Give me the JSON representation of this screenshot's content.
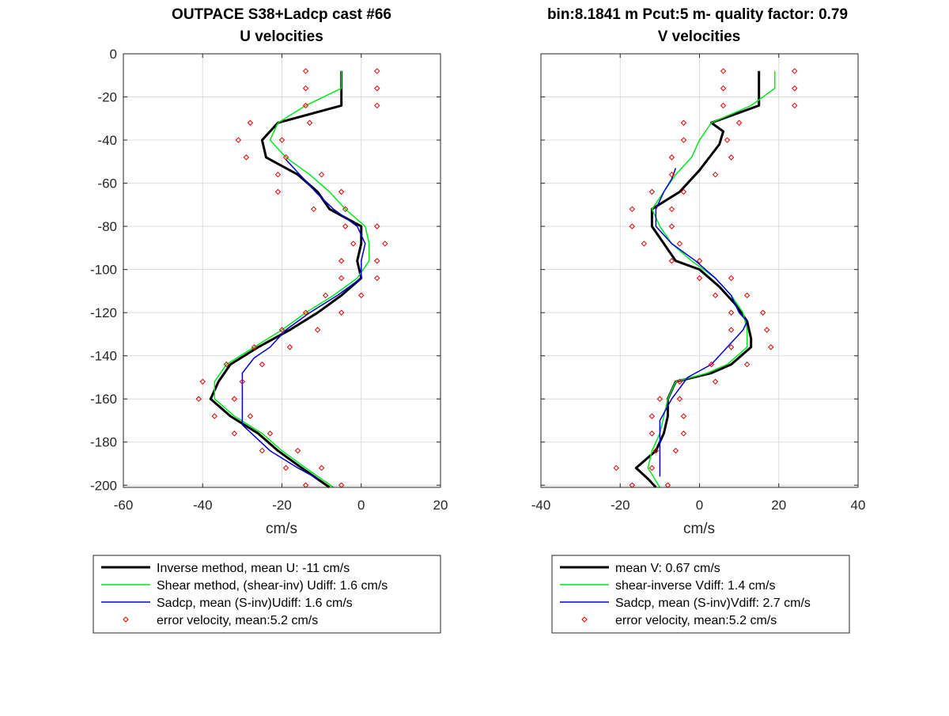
{
  "chart_data": [
    {
      "type": "line",
      "title": "OUTPACE S38+Ladcp cast #66",
      "subtitle": "U velocities",
      "xlabel": "cm/s",
      "ylabel": "",
      "xlim": [
        -60,
        20
      ],
      "ylim": [
        -201,
        0
      ],
      "xticks": [
        -60,
        -40,
        -20,
        0,
        20
      ],
      "yticks": [
        0,
        -20,
        -40,
        -60,
        -80,
        -100,
        -120,
        -140,
        -160,
        -180,
        -200
      ],
      "grid": true,
      "legend_position": "below",
      "series": [
        {
          "name": "Inverse method, mean U:  -11 cm/s",
          "color": "#000000",
          "style": "line-thick",
          "points": [
            [
              -5,
              -8
            ],
            [
              -5,
              -24
            ],
            [
              -21,
              -32
            ],
            [
              -25,
              -40
            ],
            [
              -24,
              -48
            ],
            [
              -20,
              -52
            ],
            [
              -16,
              -56
            ],
            [
              -11,
              -64
            ],
            [
              -8,
              -72
            ],
            [
              -4,
              -76
            ],
            [
              0,
              -80
            ],
            [
              0,
              -88
            ],
            [
              -1,
              -96
            ],
            [
              0,
              -104
            ],
            [
              -5,
              -112
            ],
            [
              -11,
              -120
            ],
            [
              -18,
              -128
            ],
            [
              -26,
              -136
            ],
            [
              -33,
              -144
            ],
            [
              -36,
              -152
            ],
            [
              -38,
              -160
            ],
            [
              -33,
              -168
            ],
            [
              -26,
              -176
            ],
            [
              -21,
              -184
            ],
            [
              -15,
              -192
            ],
            [
              -8,
              -201
            ]
          ]
        },
        {
          "name": "Shear method, (shear-inv)  Udiff:  1.6 cm/s",
          "color": "#00e61e",
          "style": "line",
          "points": [
            [
              -5,
              -8
            ],
            [
              -5,
              -16
            ],
            [
              -14,
              -24
            ],
            [
              -21,
              -32
            ],
            [
              -23,
              -40
            ],
            [
              -19,
              -48
            ],
            [
              -13,
              -56
            ],
            [
              -8,
              -64
            ],
            [
              -4,
              -72
            ],
            [
              1,
              -80
            ],
            [
              2,
              -88
            ],
            [
              2,
              -96
            ],
            [
              -1,
              -104
            ],
            [
              -7,
              -112
            ],
            [
              -14,
              -120
            ],
            [
              -20,
              -128
            ],
            [
              -27,
              -136
            ],
            [
              -34,
              -144
            ],
            [
              -37,
              -152
            ],
            [
              -37,
              -160
            ],
            [
              -32,
              -168
            ],
            [
              -25,
              -176
            ],
            [
              -20,
              -184
            ],
            [
              -14,
              -192
            ],
            [
              -7,
              -201
            ]
          ]
        },
        {
          "name": "Sadcp, mean (S-inv)Udiff: 1.6 cm/s",
          "color": "#0000d6",
          "style": "line",
          "points": [
            [
              -19,
              -49
            ],
            [
              -15,
              -57
            ],
            [
              -11,
              -65
            ],
            [
              -7,
              -72
            ],
            [
              -1,
              -80
            ],
            [
              1,
              -88
            ],
            [
              0,
              -96
            ],
            [
              0,
              -104
            ],
            [
              -6,
              -112
            ],
            [
              -13,
              -120
            ],
            [
              -19,
              -128
            ],
            [
              -23,
              -136
            ],
            [
              -27,
              -141
            ],
            [
              -30,
              -148
            ],
            [
              -30,
              -160
            ],
            [
              -30,
              -172
            ],
            [
              -23,
              -184
            ],
            [
              -16,
              -192
            ],
            [
              -11,
              -197
            ]
          ]
        },
        {
          "name": "error velocity, mean:5.2 cm/s",
          "color": "#e60000",
          "style": "markers",
          "points": [
            [
              -14,
              -8
            ],
            [
              4,
              -8
            ],
            [
              -14,
              -16
            ],
            [
              4,
              -16
            ],
            [
              -14,
              -24
            ],
            [
              4,
              -24
            ],
            [
              -28,
              -32
            ],
            [
              -13,
              -32
            ],
            [
              -31,
              -40
            ],
            [
              -20,
              -40
            ],
            [
              -29,
              -48
            ],
            [
              -19,
              -48
            ],
            [
              -21,
              -56
            ],
            [
              -10,
              -56
            ],
            [
              -21,
              -64
            ],
            [
              -5,
              -64
            ],
            [
              -12,
              -72
            ],
            [
              -4,
              -72
            ],
            [
              -4,
              -80
            ],
            [
              4,
              -80
            ],
            [
              -2,
              -88
            ],
            [
              6,
              -88
            ],
            [
              -5,
              -96
            ],
            [
              4,
              -96
            ],
            [
              -5,
              -104
            ],
            [
              4,
              -104
            ],
            [
              -9,
              -112
            ],
            [
              0,
              -112
            ],
            [
              -14,
              -120
            ],
            [
              -5,
              -120
            ],
            [
              -20,
              -128
            ],
            [
              -11,
              -128
            ],
            [
              -27,
              -136
            ],
            [
              -18,
              -136
            ],
            [
              -34,
              -144
            ],
            [
              -25,
              -144
            ],
            [
              -40,
              -152
            ],
            [
              -30,
              -152
            ],
            [
              -41,
              -160
            ],
            [
              -32,
              -160
            ],
            [
              -37,
              -168
            ],
            [
              -28,
              -168
            ],
            [
              -32,
              -176
            ],
            [
              -23,
              -176
            ],
            [
              -25,
              -184
            ],
            [
              -16,
              -184
            ],
            [
              -19,
              -192
            ],
            [
              -10,
              -192
            ],
            [
              -14,
              -200
            ],
            [
              -5,
              -200
            ]
          ]
        }
      ]
    },
    {
      "type": "line",
      "title": "bin:8.1841 m  Pcut:5 m- quality factor:  0.79",
      "subtitle": "V velocities",
      "xlabel": "cm/s",
      "ylabel": "",
      "xlim": [
        -40,
        40
      ],
      "ylim": [
        -201,
        0
      ],
      "xticks": [
        -40,
        -20,
        0,
        20,
        40
      ],
      "yticks": [],
      "grid": true,
      "legend_position": "below",
      "series": [
        {
          "name": "mean V:  0.67 cm/s",
          "color": "#000000",
          "style": "line-thick",
          "points": [
            [
              15,
              -8
            ],
            [
              15,
              -24
            ],
            [
              3,
              -32
            ],
            [
              6,
              -36
            ],
            [
              5,
              -42
            ],
            [
              0,
              -54
            ],
            [
              -5,
              -64
            ],
            [
              -12,
              -72
            ],
            [
              -12,
              -80
            ],
            [
              -9,
              -88
            ],
            [
              -6,
              -96
            ],
            [
              0,
              -100
            ],
            [
              5,
              -108
            ],
            [
              9,
              -116
            ],
            [
              12,
              -124
            ],
            [
              13,
              -132
            ],
            [
              13,
              -136
            ],
            [
              8,
              -144
            ],
            [
              3,
              -148
            ],
            [
              -6,
              -152
            ],
            [
              -8,
              -160
            ],
            [
              -8,
              -168
            ],
            [
              -9,
              -176
            ],
            [
              -11,
              -184
            ],
            [
              -16,
              -192
            ],
            [
              -13,
              -197
            ],
            [
              -11,
              -201
            ]
          ]
        },
        {
          "name": "shear-inverse Vdiff:  1.4 cm/s",
          "color": "#00e61e",
          "style": "line",
          "points": [
            [
              19,
              -8
            ],
            [
              19,
              -16
            ],
            [
              13,
              -24
            ],
            [
              3,
              -32
            ],
            [
              0,
              -40
            ],
            [
              -2,
              -48
            ],
            [
              -6,
              -56
            ],
            [
              -9,
              -64
            ],
            [
              -12,
              -72
            ],
            [
              -10,
              -80
            ],
            [
              -7,
              -88
            ],
            [
              -2,
              -96
            ],
            [
              4,
              -104
            ],
            [
              8,
              -112
            ],
            [
              11,
              -120
            ],
            [
              12,
              -128
            ],
            [
              12,
              -136
            ],
            [
              7,
              -144
            ],
            [
              2,
              -148
            ],
            [
              -6,
              -152
            ],
            [
              -8,
              -160
            ],
            [
              -9,
              -168
            ],
            [
              -10,
              -176
            ],
            [
              -12,
              -184
            ],
            [
              -13,
              -192
            ],
            [
              -10,
              -201
            ]
          ]
        },
        {
          "name": "Sadcp, mean (S-inv)Vdiff: 2.7 cm/s",
          "color": "#0000d6",
          "style": "line",
          "points": [
            [
              -6,
              -53
            ],
            [
              -7,
              -58
            ],
            [
              -9,
              -64
            ],
            [
              -11,
              -72
            ],
            [
              -11,
              -80
            ],
            [
              -7,
              -88
            ],
            [
              -1,
              -96
            ],
            [
              4,
              -104
            ],
            [
              8,
              -112
            ],
            [
              10,
              -120
            ],
            [
              12,
              -124
            ],
            [
              11,
              -128
            ],
            [
              7,
              -136
            ],
            [
              3,
              -144
            ],
            [
              -3,
              -150
            ],
            [
              -7,
              -160
            ],
            [
              -10,
              -170
            ],
            [
              -10,
              -180
            ],
            [
              -10,
              -190
            ],
            [
              -10,
              -196
            ]
          ]
        },
        {
          "name": "error velocity, mean:5.2 cm/s",
          "color": "#e60000",
          "style": "markers",
          "points": [
            [
              6,
              -8
            ],
            [
              24,
              -8
            ],
            [
              6,
              -16
            ],
            [
              24,
              -16
            ],
            [
              6,
              -24
            ],
            [
              24,
              -24
            ],
            [
              -4,
              -32
            ],
            [
              10,
              -32
            ],
            [
              -4,
              -40
            ],
            [
              7,
              -40
            ],
            [
              -7,
              -48
            ],
            [
              8,
              -48
            ],
            [
              -7,
              -56
            ],
            [
              4,
              -56
            ],
            [
              -12,
              -64
            ],
            [
              -4,
              -64
            ],
            [
              -17,
              -72
            ],
            [
              -7,
              -72
            ],
            [
              -17,
              -80
            ],
            [
              -7,
              -80
            ],
            [
              -14,
              -88
            ],
            [
              -5,
              -88
            ],
            [
              -7,
              -96
            ],
            [
              0,
              -96
            ],
            [
              0,
              -104
            ],
            [
              8,
              -104
            ],
            [
              4,
              -112
            ],
            [
              12,
              -112
            ],
            [
              8,
              -120
            ],
            [
              16,
              -120
            ],
            [
              8,
              -128
            ],
            [
              17,
              -128
            ],
            [
              8,
              -136
            ],
            [
              18,
              -136
            ],
            [
              3,
              -144
            ],
            [
              12,
              -144
            ],
            [
              -5,
              -152
            ],
            [
              4,
              -152
            ],
            [
              -10,
              -160
            ],
            [
              -5,
              -160
            ],
            [
              -12,
              -168
            ],
            [
              -4,
              -168
            ],
            [
              -12,
              -176
            ],
            [
              -4,
              -176
            ],
            [
              -11,
              -184
            ],
            [
              -6,
              -184
            ],
            [
              -21,
              -192
            ],
            [
              -12,
              -192
            ],
            [
              -17,
              -200
            ],
            [
              -8,
              -200
            ]
          ]
        }
      ]
    }
  ]
}
